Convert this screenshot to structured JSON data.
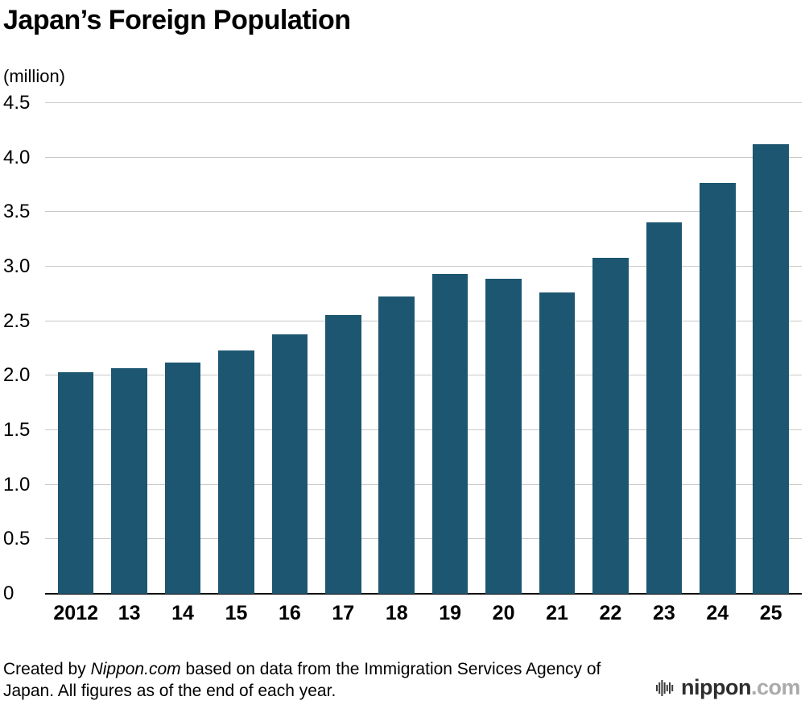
{
  "header": {
    "title": "Japan’s Foreign Population",
    "unit_label": "(million)"
  },
  "chart_data": {
    "type": "bar",
    "title": "Japan’s Foreign Population",
    "categories": [
      "2012",
      "13",
      "14",
      "15",
      "16",
      "17",
      "18",
      "19",
      "20",
      "21",
      "22",
      "23",
      "24",
      "25"
    ],
    "values": [
      2.03,
      2.07,
      2.12,
      2.23,
      2.38,
      2.56,
      2.73,
      2.93,
      2.89,
      2.76,
      3.08,
      3.41,
      3.77,
      4.12
    ],
    "xlabel": "",
    "ylabel": "(million)",
    "ylim": [
      0,
      4.5
    ],
    "ytick_step": 0.5,
    "ytick_labels": [
      "0",
      "0.5",
      "1.0",
      "1.5",
      "2.0",
      "2.5",
      "3.0",
      "3.5",
      "4.0",
      "4.5"
    ],
    "bar_color": "#1d5670",
    "grid": true,
    "legend_position": "none"
  },
  "footer": {
    "credit_prefix": "Created by ",
    "credit_source": "Nippon.com",
    "credit_suffix": " based on data from the Immigration Services Agency of Japan. All figures as of the end of each year.",
    "logo": {
      "icon": "nippon-soundbars-icon",
      "name": "nippon",
      "tld": ".com"
    }
  }
}
